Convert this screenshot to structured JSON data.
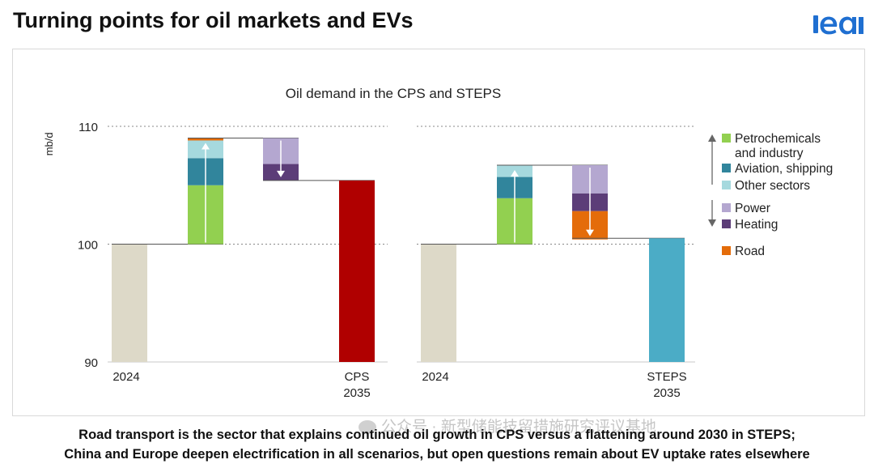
{
  "slide": {
    "title": "Turning points for oil markets and EVs",
    "logo_text": "iea",
    "footer_line1": "Road transport is the sector that explains continued oil growth in CPS versus a flattening around 2030 in STEPS;",
    "footer_line2": "China and Europe deepen electrification in all scenarios, but open questions remain about EV uptake rates elsewhere",
    "watermark": "公众号 · 新型储能技留措施研究评议基地"
  },
  "colors": {
    "base": "#ddd9c8",
    "petrochemicals": "#92d050",
    "aviation": "#31859c",
    "other": "#a6d9de",
    "power": "#b4a7d0",
    "heating": "#5c3d78",
    "road": "#e46c0a",
    "cps_total": "#b00000",
    "steps_total": "#4bacc6",
    "logo": "#1f6fd1"
  },
  "chart_data": {
    "type": "bar",
    "subtype": "waterfall",
    "title": "Oil demand in the CPS and STEPS",
    "ylabel": "mb/d",
    "ylim": [
      90,
      110
    ],
    "yticks": [
      "90",
      "100",
      "110"
    ],
    "legend": {
      "placement": "right",
      "up_label": "increase",
      "down_label": "decrease",
      "items": [
        {
          "key": "petrochemicals",
          "label": "Petrochemicals and industry",
          "lines": [
            "Petrochemicals",
            "and industry"
          ]
        },
        {
          "key": "aviation",
          "label": "Aviation, shipping",
          "lines": [
            "Aviation, shipping"
          ]
        },
        {
          "key": "other",
          "label": "Other sectors",
          "lines": [
            "Other sectors"
          ]
        },
        {
          "key": "power",
          "label": "Power",
          "lines": [
            "Power"
          ]
        },
        {
          "key": "heating",
          "label": "Heating",
          "lines": [
            "Heating"
          ]
        },
        {
          "key": "road",
          "label": "Road",
          "lines": [
            "Road"
          ]
        }
      ]
    },
    "panels": [
      {
        "name": "CPS",
        "start": {
          "label": "2024",
          "value": 100.0
        },
        "increases": [
          {
            "key": "petrochemicals",
            "value": 5.0
          },
          {
            "key": "aviation",
            "value": 2.3
          },
          {
            "key": "other",
            "value": 1.5
          },
          {
            "key": "road",
            "value": 0.2
          }
        ],
        "decreases": [
          {
            "key": "power",
            "value": 2.2
          },
          {
            "key": "heating",
            "value": 1.4
          }
        ],
        "end": {
          "label_lines": [
            "CPS",
            "2035"
          ],
          "value": 105.4,
          "color_key": "cps_total"
        }
      },
      {
        "name": "STEPS",
        "start": {
          "label": "2024",
          "value": 100.0
        },
        "increases": [
          {
            "key": "petrochemicals",
            "value": 3.9
          },
          {
            "key": "aviation",
            "value": 1.8
          },
          {
            "key": "other",
            "value": 1.0
          }
        ],
        "decreases": [
          {
            "key": "power",
            "value": 2.4
          },
          {
            "key": "heating",
            "value": 1.5
          },
          {
            "key": "road",
            "value": 2.4
          }
        ],
        "end": {
          "label_lines": [
            "STEPS",
            "2035"
          ],
          "value": 100.5,
          "color_key": "steps_total"
        }
      }
    ]
  }
}
